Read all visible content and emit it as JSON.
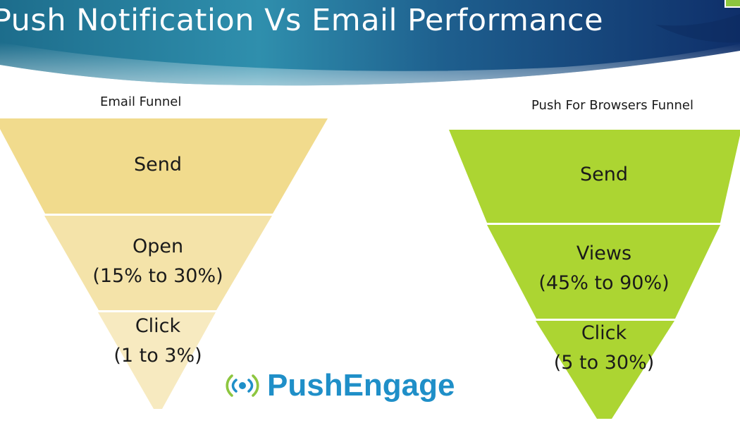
{
  "title": "Push Notification Vs Email Performance",
  "colors": {
    "email_top": "#f1db8d",
    "email_mid": "#f4e3a9",
    "email_bottom": "#f7eac0",
    "push": "#acd532",
    "logo_blue": "#1f8fc8",
    "badge_green": "#8dc63f"
  },
  "email_funnel": {
    "label": "Email Funnel",
    "stages": [
      {
        "name": "Send",
        "range": ""
      },
      {
        "name": "Open",
        "range": "(15% to 30%)"
      },
      {
        "name": "Click",
        "range": "(1 to 3%)"
      }
    ]
  },
  "push_funnel": {
    "label": "Push For Browsers Funnel",
    "stages": [
      {
        "name": "Send",
        "range": ""
      },
      {
        "name": "Views",
        "range": "(45% to 90%)"
      },
      {
        "name": "Click",
        "range": "(5 to 30%)"
      }
    ]
  },
  "logo": {
    "text": "PushEngage",
    "icon": "broadcast-signal-icon"
  }
}
